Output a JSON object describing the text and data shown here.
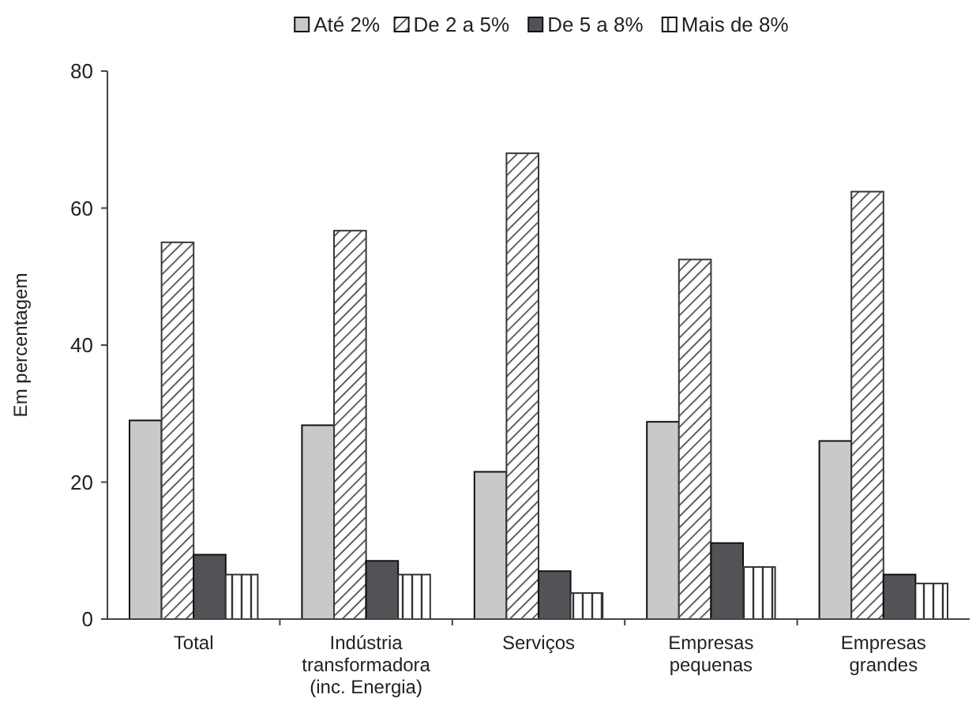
{
  "chart_data": {
    "type": "bar",
    "ylabel": "Em percentagem",
    "categories": [
      "Total",
      "Indústria transformadora (inc. Energia)",
      "Serviços",
      "Empresas pequenas",
      "Empresas grandes"
    ],
    "series": [
      {
        "name": "Até 2%",
        "color": "#c8c9cb",
        "values": [
          29,
          28.3,
          21.5,
          28.8,
          26
        ]
      },
      {
        "name": "De 2 a 5%",
        "color": "#3a3a3a",
        "values": [
          55,
          56.7,
          68,
          52.5,
          62.4
        ]
      },
      {
        "name": "De 5 a 8%",
        "color": "#525356",
        "values": [
          9.4,
          8.5,
          7,
          11.1,
          6.5
        ]
      },
      {
        "name": "Mais de 8%",
        "color": "#333333",
        "values": [
          6.5,
          6.5,
          3.8,
          7.6,
          5.2
        ]
      }
    ],
    "ylim": [
      0,
      80
    ],
    "yticks": [
      0,
      20,
      40,
      60,
      80
    ],
    "legend": "top",
    "grid": false
  }
}
